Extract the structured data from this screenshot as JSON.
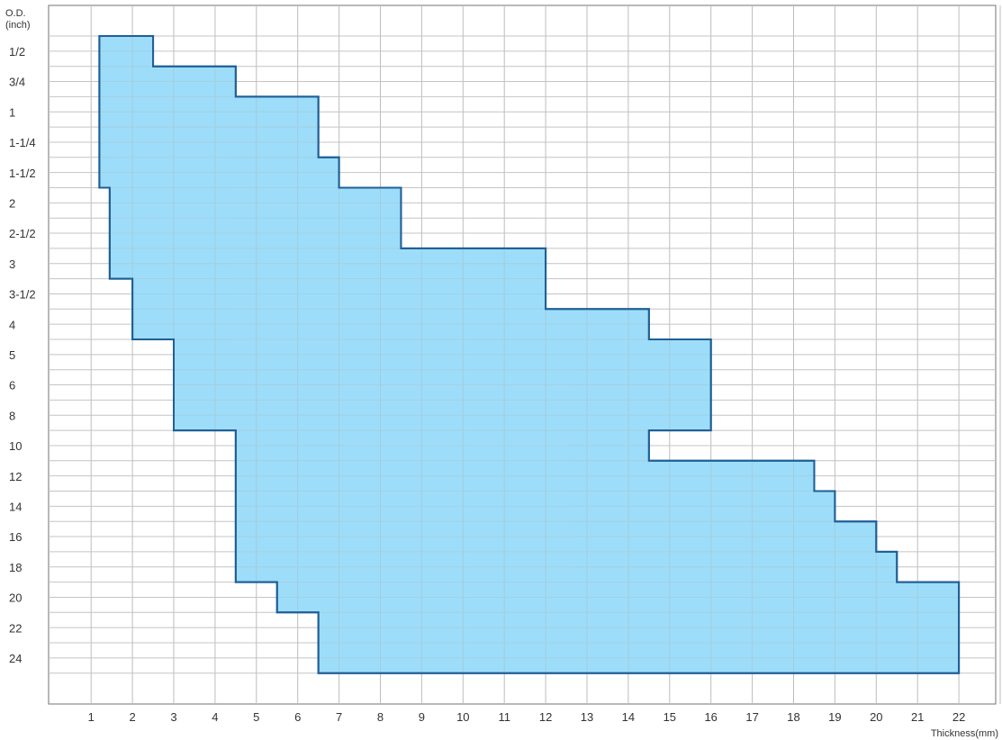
{
  "chart_data": {
    "type": "area",
    "xlabel": "Thickness(mm)",
    "ylabel_line1": "O.D.",
    "ylabel_line2": "(inch)",
    "x_ticks": [
      1,
      2,
      3,
      4,
      5,
      6,
      7,
      8,
      9,
      10,
      11,
      12,
      13,
      14,
      15,
      16,
      17,
      18,
      19,
      20,
      21,
      22
    ],
    "x_tick_labels": [
      "1",
      "2",
      "3",
      "4",
      "5",
      "6",
      "7",
      "8",
      "9",
      "10",
      "11",
      "12",
      "13",
      "14",
      "15",
      "16",
      "17",
      "18",
      "19",
      "20",
      "21",
      "22"
    ],
    "y_tick_labels": [
      "1/2",
      "3/4",
      "1",
      "1-1/4",
      "1-1/2",
      "2",
      "2-1/2",
      "3",
      "3-1/2",
      "4",
      "5",
      "6",
      "8",
      "10",
      "12",
      "14",
      "16",
      "18",
      "20",
      "22",
      "24"
    ],
    "xlim": [
      0,
      23.3
    ],
    "grid": true,
    "fill_color": "#90d8f8",
    "stroke_color": "#1f5f96",
    "ranges": [
      {
        "od": "1/2",
        "min_thickness": 1.2,
        "max_thickness": 2.5
      },
      {
        "od": "3/4",
        "min_thickness": 1.2,
        "max_thickness": 4.5
      },
      {
        "od": "1",
        "min_thickness": 1.2,
        "max_thickness": 6.5
      },
      {
        "od": "1-1/4",
        "min_thickness": 1.2,
        "max_thickness": 6.5
      },
      {
        "od": "1-1/2",
        "min_thickness": 1.2,
        "max_thickness": 7.0
      },
      {
        "od": "2",
        "min_thickness": 1.45,
        "max_thickness": 8.5
      },
      {
        "od": "2-1/2",
        "min_thickness": 1.45,
        "max_thickness": 8.5
      },
      {
        "od": "3",
        "min_thickness": 1.45,
        "max_thickness": 12.0
      },
      {
        "od": "3-1/2",
        "min_thickness": 2.0,
        "max_thickness": 12.0
      },
      {
        "od": "4",
        "min_thickness": 2.0,
        "max_thickness": 14.5
      },
      {
        "od": "5",
        "min_thickness": 3.0,
        "max_thickness": 16.0
      },
      {
        "od": "6",
        "min_thickness": 3.0,
        "max_thickness": 16.0
      },
      {
        "od": "8",
        "min_thickness": 3.0,
        "max_thickness": 16.0
      },
      {
        "od": "10",
        "min_thickness": 4.5,
        "max_thickness": 14.5
      },
      {
        "od": "12",
        "min_thickness": 4.5,
        "max_thickness": 18.5
      },
      {
        "od": "14",
        "min_thickness": 4.5,
        "max_thickness": 19.0
      },
      {
        "od": "16",
        "min_thickness": 4.5,
        "max_thickness": 20.0
      },
      {
        "od": "18",
        "min_thickness": 4.5,
        "max_thickness": 20.5
      },
      {
        "od": "20",
        "min_thickness": 5.5,
        "max_thickness": 22.0
      },
      {
        "od": "22",
        "min_thickness": 6.5,
        "max_thickness": 22.0
      },
      {
        "od": "24",
        "min_thickness": 6.5,
        "max_thickness": 22.0
      }
    ]
  }
}
